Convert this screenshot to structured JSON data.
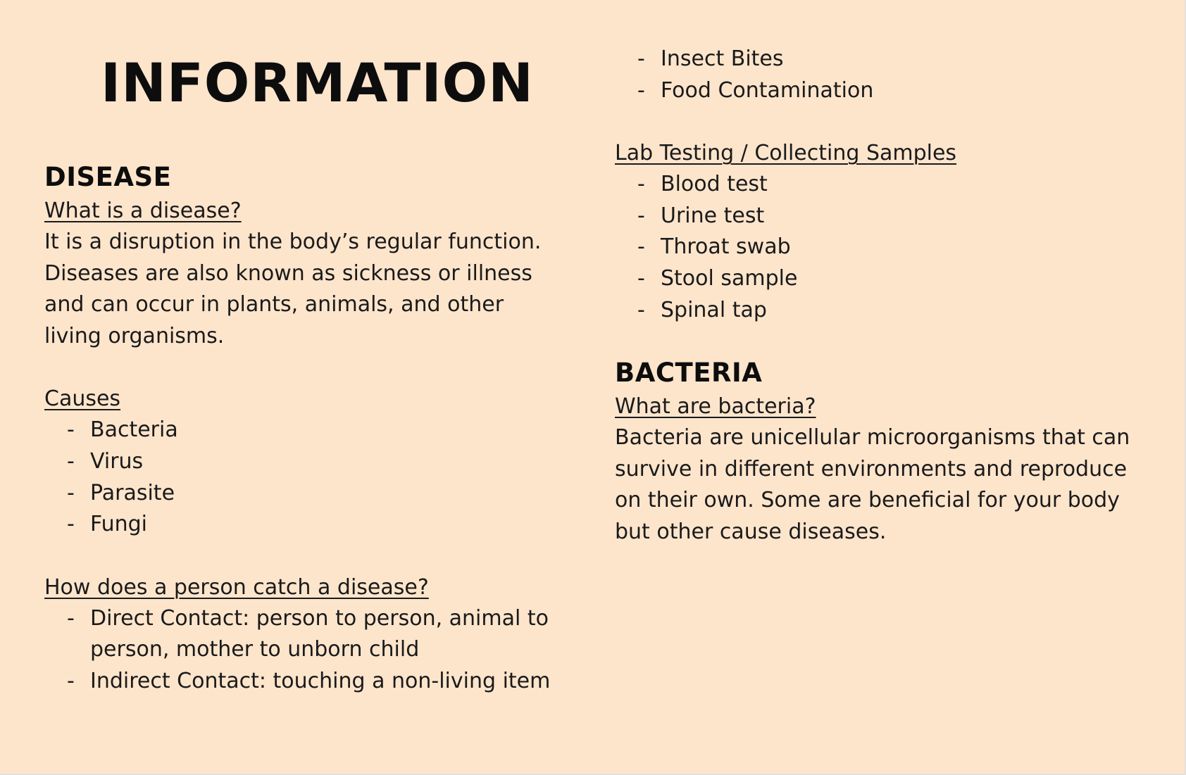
{
  "title": "INFORMATION",
  "disease": {
    "heading": "DISEASE",
    "what_label": "What is a disease?",
    "what_text": "It is a disruption in the body’s regular function. Diseases are also known as sickness or illness and can occur in plants, animals, and other living organisms.",
    "causes_label": "Causes",
    "causes": [
      "Bacteria",
      "Virus",
      "Parasite",
      "Fungi"
    ],
    "catch_label": "How does a person catch a disease?",
    "catch_items": [
      "Direct Contact: person to person, animal to person, mother to unborn child",
      "Indirect Contact: touching a non-living item",
      "Insect Bites",
      "Food Contamination"
    ]
  },
  "lab": {
    "label": "Lab Testing / Collecting Samples",
    "items": [
      "Blood test",
      "Urine test",
      "Throat swab",
      "Stool sample",
      "Spinal tap"
    ]
  },
  "bacteria": {
    "heading": "BACTERIA",
    "what_label": "What are bacteria?",
    "what_text": "Bacteria are unicellular microorganisms that can survive in different environments and reproduce on their own. Some are beneficial for your body but other cause diseases."
  }
}
